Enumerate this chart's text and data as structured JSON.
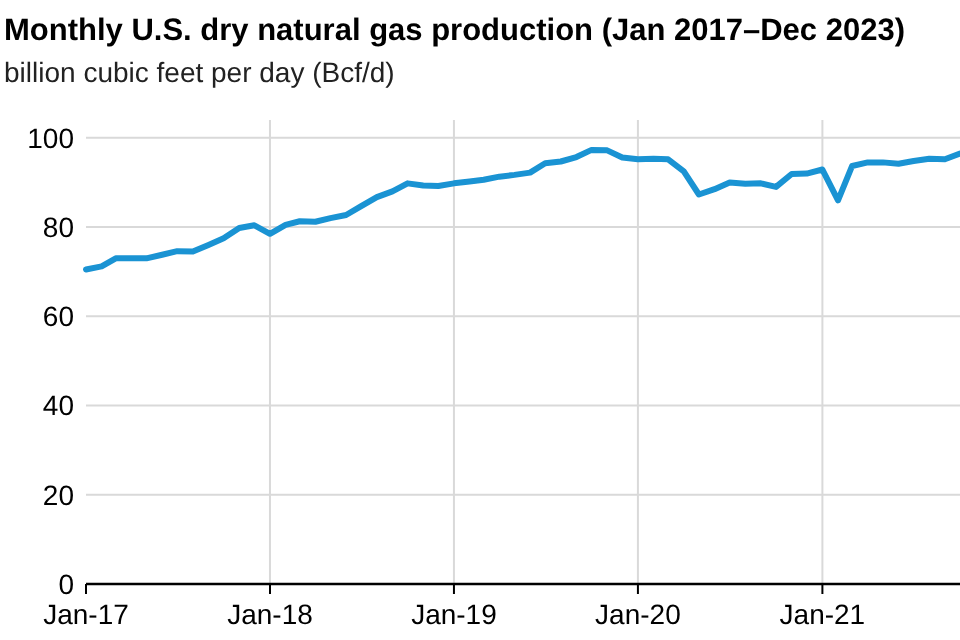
{
  "chart_data": {
    "type": "line",
    "title": "Monthly U.S. dry natural gas production (Jan 2017–Dec 2023)",
    "subtitle": "billion cubic feet per day (Bcf/d)",
    "x": [
      "2017-01",
      "2017-02",
      "2017-03",
      "2017-04",
      "2017-05",
      "2017-06",
      "2017-07",
      "2017-08",
      "2017-09",
      "2017-10",
      "2017-11",
      "2017-12",
      "2018-01",
      "2018-02",
      "2018-03",
      "2018-04",
      "2018-05",
      "2018-06",
      "2018-07",
      "2018-08",
      "2018-09",
      "2018-10",
      "2018-11",
      "2018-12",
      "2019-01",
      "2019-02",
      "2019-03",
      "2019-04",
      "2019-05",
      "2019-06",
      "2019-07",
      "2019-08",
      "2019-09",
      "2019-10",
      "2019-11",
      "2019-12",
      "2020-01",
      "2020-02",
      "2020-03",
      "2020-04",
      "2020-05",
      "2020-06",
      "2020-07",
      "2020-08",
      "2020-09",
      "2020-10",
      "2020-11",
      "2020-12",
      "2021-01",
      "2021-02",
      "2021-03",
      "2021-04",
      "2021-05",
      "2021-06",
      "2021-07",
      "2021-08",
      "2021-09",
      "2021-10"
    ],
    "series": [
      {
        "color": "#1a93d3",
        "values": [
          70.5,
          71.2,
          73,
          73,
          73,
          73.8,
          74.6,
          74.5,
          76,
          77.5,
          79.8,
          80.4,
          78.5,
          80.5,
          81.3,
          81.2,
          82,
          82.7,
          84.7,
          86.7,
          88,
          89.8,
          89.3,
          89.2,
          89.8,
          90.2,
          90.6,
          91.3,
          91.7,
          92.2,
          94.3,
          94.7,
          95.7,
          97.3,
          97.2,
          95.6,
          95.2,
          95.3,
          95.2,
          92.5,
          87.3,
          88.5,
          90,
          89.7,
          89.8,
          89,
          91.9,
          92,
          92.9,
          86,
          93.7,
          94.5,
          94.5,
          94.2,
          94.8,
          95.3,
          95.2,
          96.5
        ]
      }
    ],
    "xlim": [
      "2017-01",
      "2021-10"
    ],
    "xticks": [
      {
        "value": "2017-01",
        "label": "Jan-17"
      },
      {
        "value": "2018-01",
        "label": "Jan-18"
      },
      {
        "value": "2019-01",
        "label": "Jan-19"
      },
      {
        "value": "2020-01",
        "label": "Jan-20"
      },
      {
        "value": "2021-01",
        "label": "Jan-21"
      }
    ],
    "ylim": [
      0,
      104
    ],
    "yticks": [
      0,
      20,
      40,
      60,
      80,
      100
    ],
    "grid": true,
    "marker": "none",
    "line_style": "solid"
  }
}
